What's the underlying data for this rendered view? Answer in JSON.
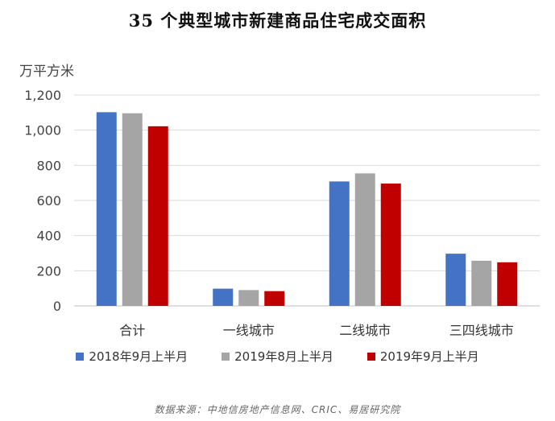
{
  "header": {
    "title": "35 个典型城市新建商品住宅成交面积",
    "unit": "万平方米"
  },
  "source": "数据来源：中地信房地产信息网、CRIC、易居研究院",
  "colors": {
    "series": [
      "#4472C4",
      "#A5A5A5",
      "#C00000"
    ],
    "grid": "#D9D9D9",
    "axis": "#BFBFBF"
  },
  "chart_data": {
    "type": "bar",
    "title": "35 个典型城市新建商品住宅成交面积",
    "ylabel": "万平方米",
    "xlabel": "",
    "categories": [
      "合计",
      "一线城市",
      "二线城市",
      "三四线城市"
    ],
    "series": [
      {
        "name": "2018年9月上半月",
        "values": [
          1102,
          98,
          708,
          297
        ]
      },
      {
        "name": "2019年8月上半月",
        "values": [
          1096,
          90,
          754,
          257
        ]
      },
      {
        "name": "2019年9月上半月",
        "values": [
          1022,
          84,
          696,
          248
        ]
      }
    ],
    "ylim": [
      0,
      1200
    ],
    "yticks": [
      0,
      200,
      400,
      600,
      800,
      1000,
      1200
    ],
    "ytick_labels": [
      "0",
      "200",
      "400",
      "600",
      "800",
      "1,000",
      "1,200"
    ],
    "grid": true,
    "legend": "bottom"
  }
}
